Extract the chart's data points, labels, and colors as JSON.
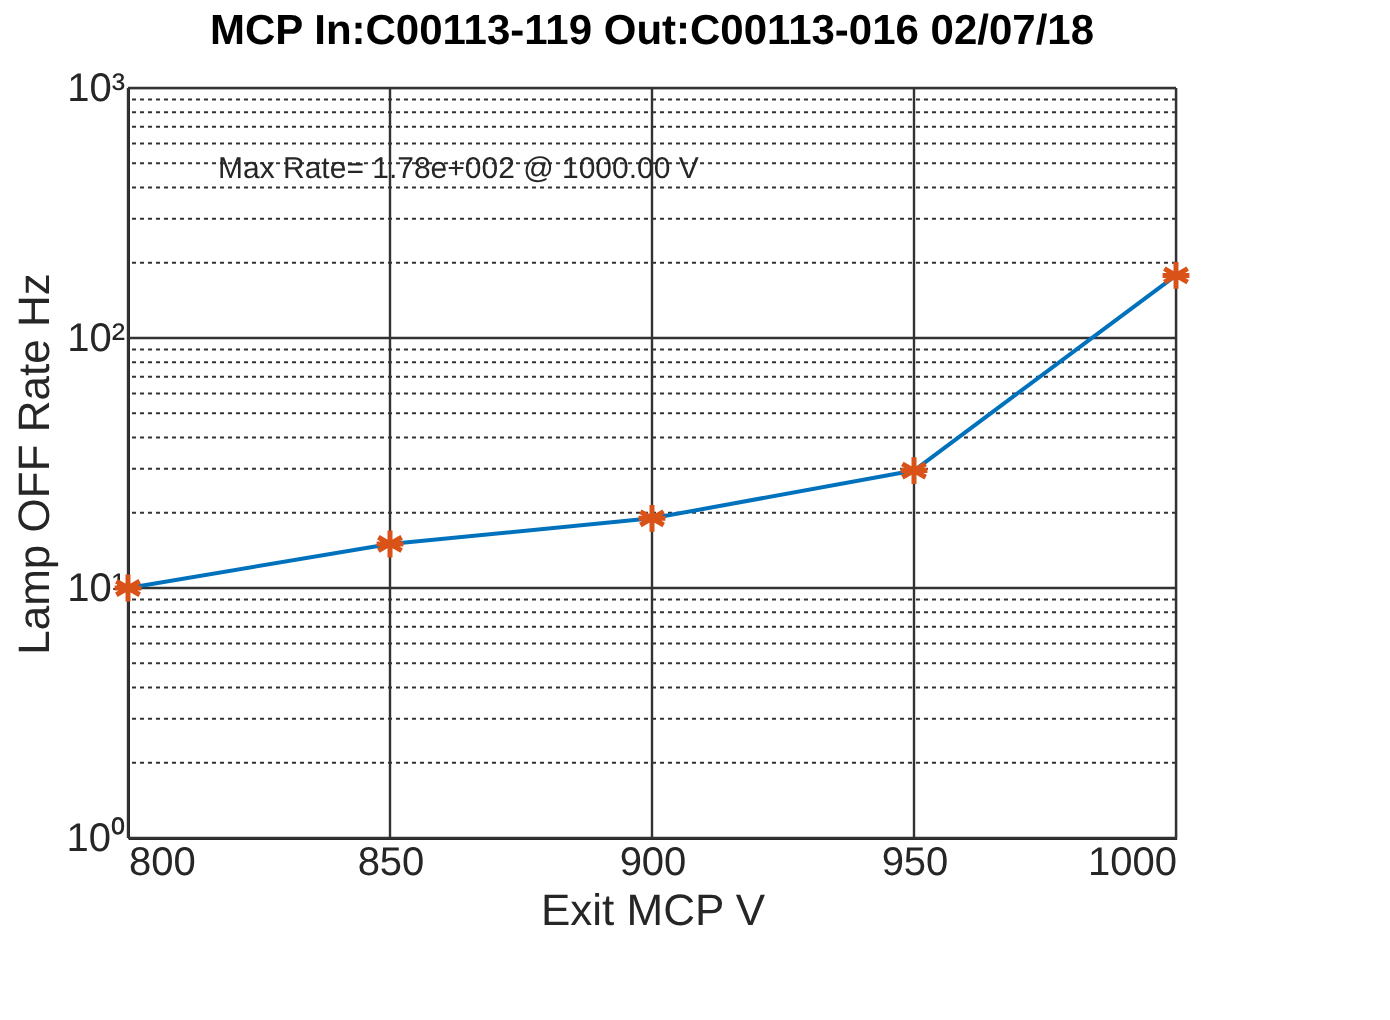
{
  "chart_data": {
    "type": "line",
    "title": "MCP In:C00113-119 Out:C00113-016 02/07/18",
    "xlabel": "Exit MCP V",
    "ylabel": "Lamp OFF Rate Hz",
    "x": [
      800,
      850,
      900,
      950,
      1000
    ],
    "series": [
      {
        "color": "#0072bd",
        "colors": [
          "#d95319",
          "#d95319",
          "#d95319",
          "#d95319",
          "#d95319"
        ],
        "values": [
          10,
          15,
          19,
          29.5,
          178
        ]
      }
    ],
    "marker": "cross",
    "line_style": "solid",
    "log": "y",
    "grid": true,
    "xlim": [
      800,
      1000
    ],
    "xticks": [
      800,
      850,
      900,
      950,
      1000
    ],
    "ylim": [
      1,
      1000
    ],
    "yticks": [
      {
        "value": 1,
        "label": "10⁰"
      },
      {
        "value": 2,
        "label": null
      },
      {
        "value": 3,
        "label": null
      },
      {
        "value": 4,
        "label": null
      },
      {
        "value": 5,
        "label": null
      },
      {
        "value": 6,
        "label": null
      },
      {
        "value": 7,
        "label": null
      },
      {
        "value": 8,
        "label": null
      },
      {
        "value": 9,
        "label": null
      },
      {
        "value": 10,
        "label": "10¹"
      },
      {
        "value": 20,
        "label": null
      },
      {
        "value": 30,
        "label": null
      },
      {
        "value": 40,
        "label": null
      },
      {
        "value": 50,
        "label": null
      },
      {
        "value": 60,
        "label": null
      },
      {
        "value": 70,
        "label": null
      },
      {
        "value": 80,
        "label": null
      },
      {
        "value": 90,
        "label": null
      },
      {
        "value": 100,
        "label": "10²"
      },
      {
        "value": 200,
        "label": null
      },
      {
        "value": 300,
        "label": null
      },
      {
        "value": 400,
        "label": null
      },
      {
        "value": 500,
        "label": null
      },
      {
        "value": 600,
        "label": null
      },
      {
        "value": 700,
        "label": null
      },
      {
        "value": 800,
        "label": null
      },
      {
        "value": 900,
        "label": null
      },
      {
        "value": 1000,
        "label": "10³"
      }
    ],
    "annotations": [
      "Max Rate= 1.78e+002 @ 1000.00 V"
    ]
  }
}
